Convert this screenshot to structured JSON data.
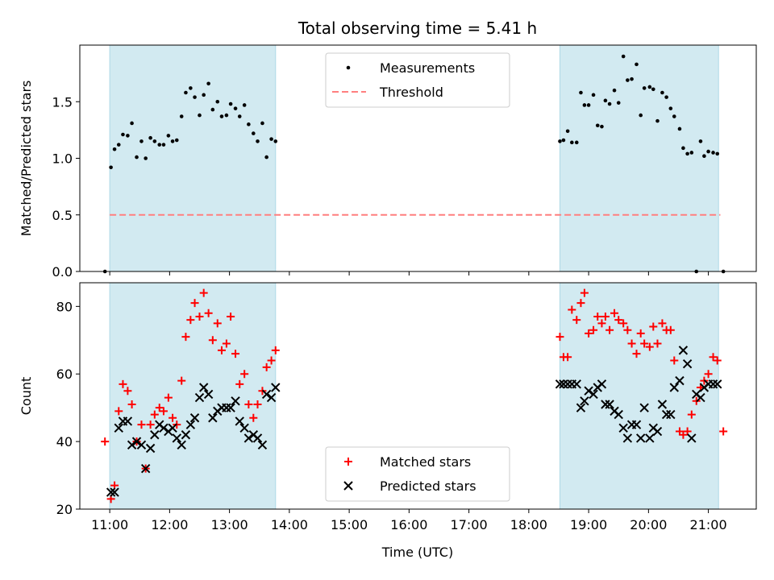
{
  "figure": {
    "title": "Total observing time = 5.41 h",
    "xlabel": "Time (UTC)"
  },
  "colors": {
    "shade": "#add8e6",
    "threshold": "#ff7f7f",
    "measurements": "#000000",
    "matched": "#ff0000",
    "predicted": "#000000"
  },
  "chart_data": [
    {
      "type": "scatter",
      "ylabel": "Matched/Predicted stars",
      "xlim": [
        10.5,
        21.8
      ],
      "ylim": [
        0,
        2.0
      ],
      "yticks": [
        0.0,
        0.5,
        1.0,
        1.5
      ],
      "ytick_labels": [
        "0.0",
        "0.5",
        "1.0",
        "1.5"
      ],
      "xticks": [
        11,
        12,
        13,
        14,
        15,
        16,
        17,
        18,
        19,
        20,
        21
      ],
      "xtick_labels": [],
      "grid": false,
      "legend_position": "top-center",
      "shaded_intervals": [
        [
          11.0,
          13.77
        ],
        [
          18.52,
          21.17
        ]
      ],
      "threshold": {
        "name": "Threshold",
        "value": 0.5,
        "x_range": [
          11.0,
          21.2
        ]
      },
      "series": [
        {
          "name": "Measurements",
          "x": [
            10.92,
            11.02,
            11.08,
            11.15,
            11.22,
            11.3,
            11.37,
            11.45,
            11.53,
            11.6,
            11.68,
            11.75,
            11.83,
            11.9,
            11.98,
            12.05,
            12.12,
            12.2,
            12.27,
            12.35,
            12.42,
            12.5,
            12.57,
            12.65,
            12.72,
            12.8,
            12.87,
            12.95,
            13.02,
            13.1,
            13.17,
            13.25,
            13.32,
            13.4,
            13.47,
            13.55,
            13.62,
            13.7,
            13.77,
            18.52,
            18.58,
            18.65,
            18.72,
            18.8,
            18.87,
            18.93,
            19.0,
            19.08,
            19.15,
            19.22,
            19.28,
            19.35,
            19.43,
            19.5,
            19.58,
            19.65,
            19.72,
            19.8,
            19.87,
            19.93,
            20.02,
            20.08,
            20.15,
            20.23,
            20.3,
            20.37,
            20.43,
            20.52,
            20.58,
            20.65,
            20.72,
            20.8,
            20.87,
            20.93,
            21.0,
            21.08,
            21.15,
            21.25
          ],
          "y": [
            0.0,
            0.92,
            1.08,
            1.12,
            1.21,
            1.2,
            1.31,
            1.01,
            1.15,
            1.0,
            1.18,
            1.15,
            1.12,
            1.12,
            1.2,
            1.15,
            1.16,
            1.37,
            1.58,
            1.62,
            1.54,
            1.38,
            1.56,
            1.66,
            1.43,
            1.5,
            1.37,
            1.38,
            1.48,
            1.44,
            1.37,
            1.47,
            1.3,
            1.22,
            1.15,
            1.31,
            1.01,
            1.17,
            1.15,
            1.15,
            1.16,
            1.24,
            1.14,
            1.14,
            1.58,
            1.47,
            1.47,
            1.56,
            1.29,
            1.28,
            1.51,
            1.48,
            1.6,
            1.49,
            1.9,
            1.69,
            1.7,
            1.83,
            1.38,
            1.62,
            1.63,
            1.61,
            1.33,
            1.58,
            1.54,
            1.44,
            1.37,
            1.26,
            1.09,
            1.04,
            1.05,
            0.0,
            1.15,
            1.02,
            1.06,
            1.05,
            1.04,
            0.0
          ]
        }
      ]
    },
    {
      "type": "scatter",
      "ylabel": "Count",
      "xlim": [
        10.5,
        21.8
      ],
      "ylim": [
        20,
        87
      ],
      "yticks": [
        20,
        40,
        60,
        80
      ],
      "ytick_labels": [
        "20",
        "40",
        "60",
        "80"
      ],
      "xticks": [
        11,
        12,
        13,
        14,
        15,
        16,
        17,
        18,
        19,
        20,
        21
      ],
      "xtick_labels": [
        "11:00",
        "12:00",
        "13:00",
        "14:00",
        "15:00",
        "16:00",
        "17:00",
        "18:00",
        "19:00",
        "20:00",
        "21:00"
      ],
      "grid": false,
      "legend_position": "bottom-center",
      "shaded_intervals": [
        [
          11.0,
          13.77
        ],
        [
          18.52,
          21.17
        ]
      ],
      "series": [
        {
          "name": "Matched stars",
          "x": [
            10.92,
            11.02,
            11.08,
            11.15,
            11.22,
            11.3,
            11.37,
            11.45,
            11.53,
            11.6,
            11.68,
            11.75,
            11.83,
            11.9,
            11.98,
            12.05,
            12.12,
            12.2,
            12.27,
            12.35,
            12.42,
            12.5,
            12.57,
            12.65,
            12.72,
            12.8,
            12.87,
            12.95,
            13.02,
            13.1,
            13.17,
            13.25,
            13.32,
            13.4,
            13.47,
            13.55,
            13.62,
            13.7,
            13.77,
            18.52,
            18.58,
            18.65,
            18.72,
            18.8,
            18.87,
            18.93,
            19.0,
            19.08,
            19.15,
            19.22,
            19.28,
            19.35,
            19.43,
            19.5,
            19.58,
            19.65,
            19.72,
            19.8,
            19.87,
            19.93,
            20.02,
            20.08,
            20.15,
            20.23,
            20.3,
            20.37,
            20.43,
            20.52,
            20.58,
            20.65,
            20.72,
            20.8,
            20.87,
            20.93,
            21.0,
            21.08,
            21.15,
            21.25
          ],
          "y": [
            40,
            23,
            27,
            49,
            57,
            55,
            51,
            40,
            45,
            32,
            45,
            48,
            50,
            49,
            53,
            47,
            45,
            58,
            71,
            76,
            81,
            77,
            84,
            78,
            70,
            75,
            67,
            69,
            77,
            66,
            57,
            60,
            51,
            47,
            51,
            55,
            62,
            64,
            67,
            71,
            65,
            65,
            79,
            76,
            81,
            84,
            72,
            73,
            77,
            75,
            77,
            73,
            78,
            76,
            75,
            73,
            69,
            66,
            72,
            69,
            68,
            74,
            69,
            75,
            73,
            73,
            64,
            43,
            42,
            43,
            48,
            52,
            56,
            58,
            60,
            65,
            64,
            43
          ],
          "marker": "plus"
        },
        {
          "name": "Predicted stars",
          "x": [
            11.02,
            11.08,
            11.15,
            11.22,
            11.3,
            11.37,
            11.45,
            11.53,
            11.6,
            11.68,
            11.75,
            11.83,
            11.9,
            11.98,
            12.05,
            12.12,
            12.2,
            12.27,
            12.35,
            12.42,
            12.5,
            12.57,
            12.65,
            12.72,
            12.8,
            12.87,
            12.95,
            13.02,
            13.1,
            13.17,
            13.25,
            13.32,
            13.4,
            13.47,
            13.55,
            13.62,
            13.7,
            13.77,
            18.52,
            18.58,
            18.65,
            18.72,
            18.8,
            18.87,
            18.93,
            19.0,
            19.08,
            19.15,
            19.22,
            19.28,
            19.35,
            19.43,
            19.5,
            19.58,
            19.65,
            19.72,
            19.8,
            19.87,
            19.93,
            20.02,
            20.08,
            20.15,
            20.23,
            20.3,
            20.37,
            20.43,
            20.52,
            20.58,
            20.65,
            20.72,
            20.8,
            20.87,
            20.93,
            21.0,
            21.08,
            21.15
          ],
          "y": [
            25,
            25,
            44,
            46,
            46,
            39,
            40,
            39,
            32,
            38,
            42,
            45,
            44,
            43,
            44,
            41,
            39,
            42,
            45,
            47,
            53,
            56,
            54,
            47,
            49,
            50,
            50,
            50,
            52,
            46,
            44,
            41,
            42,
            41,
            39,
            54,
            53,
            56,
            57,
            57,
            57,
            57,
            57,
            50,
            52,
            55,
            54,
            56,
            57,
            51,
            51,
            49,
            48,
            44,
            41,
            45,
            45,
            41,
            50,
            41,
            44,
            43,
            51,
            48,
            48,
            56,
            58,
            67,
            63,
            41,
            54,
            53,
            56,
            57,
            57,
            57
          ],
          "marker": "x"
        }
      ]
    }
  ]
}
